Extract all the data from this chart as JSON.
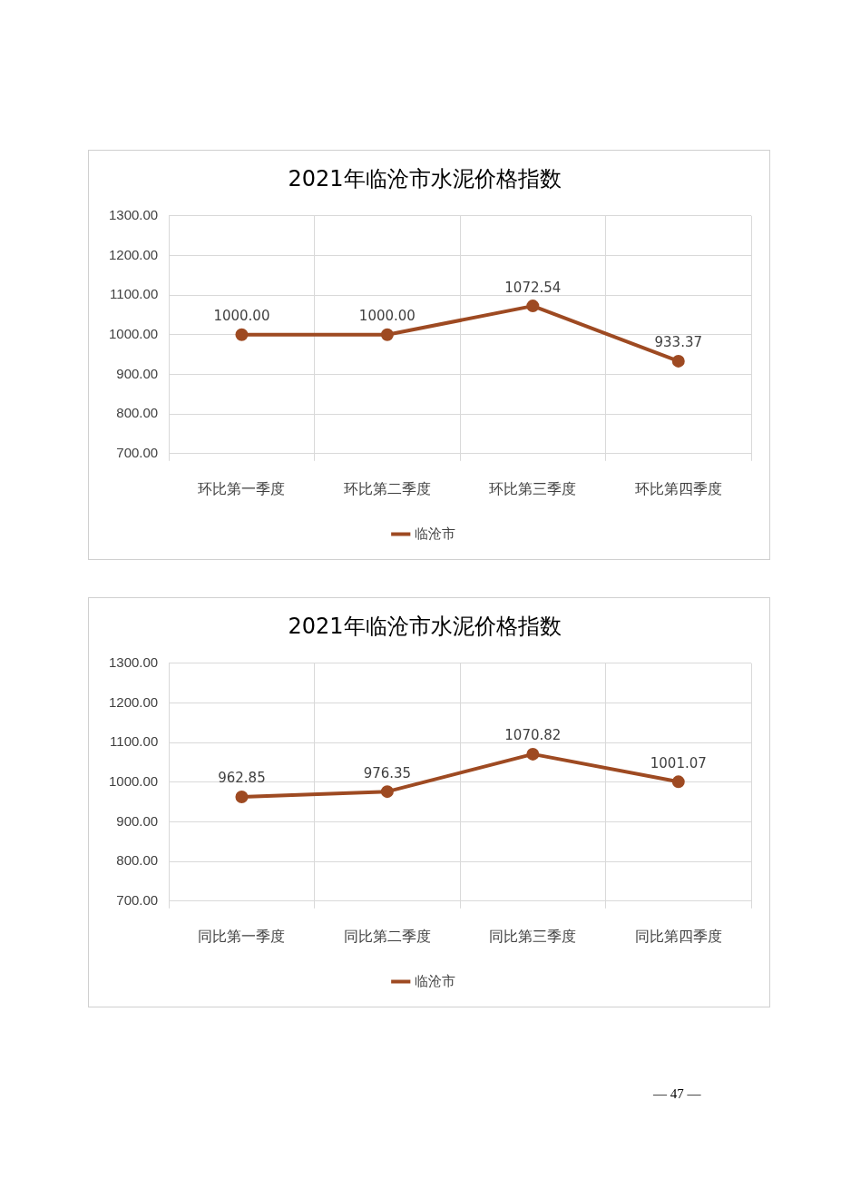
{
  "chart_data": [
    {
      "type": "line",
      "title": "2021年临沧市水泥价格指数",
      "categories": [
        "环比第一季度",
        "环比第二季度",
        "环比第三季度",
        "环比第四季度"
      ],
      "series": [
        {
          "name": "临沧市",
          "color": "#9e4a22",
          "values": [
            1000,
            1000,
            1072.54,
            933.37
          ],
          "value_labels": [
            "1000.00",
            "1000.00",
            "1072.54",
            "933.37"
          ]
        }
      ],
      "ylim": [
        700,
        1300
      ],
      "yticks": [
        {
          "value": 700,
          "label": "700.00"
        },
        {
          "value": 800,
          "label": "800.00"
        },
        {
          "value": 900,
          "label": "900.00"
        },
        {
          "value": 1000,
          "label": "1000.00"
        },
        {
          "value": 1100,
          "label": "1100.00"
        },
        {
          "value": 1200,
          "label": "1200.00"
        },
        {
          "value": 1300,
          "label": "1300.00"
        }
      ],
      "grid": true,
      "legend": "bottom",
      "marker": "circle",
      "line_style": "solid"
    },
    {
      "type": "line",
      "title": "2021年临沧市水泥价格指数",
      "categories": [
        "同比第一季度",
        "同比第二季度",
        "同比第三季度",
        "同比第四季度"
      ],
      "series": [
        {
          "name": "临沧市",
          "color": "#9e4a22",
          "values": [
            962.85,
            976.35,
            1070.82,
            1001.07
          ],
          "value_labels": [
            "962.85",
            "976.35",
            "1070.82",
            "1001.07"
          ]
        }
      ],
      "ylim": [
        700,
        1300
      ],
      "yticks": [
        {
          "value": 700,
          "label": "700.00"
        },
        {
          "value": 800,
          "label": "800.00"
        },
        {
          "value": 900,
          "label": "900.00"
        },
        {
          "value": 1000,
          "label": "1000.00"
        },
        {
          "value": 1100,
          "label": "1100.00"
        },
        {
          "value": 1200,
          "label": "1200.00"
        },
        {
          "value": 1300,
          "label": "1300.00"
        }
      ],
      "grid": true,
      "legend": "bottom",
      "marker": "circle",
      "line_style": "solid",
      "annotations": [
        "— 47 —"
      ]
    }
  ]
}
